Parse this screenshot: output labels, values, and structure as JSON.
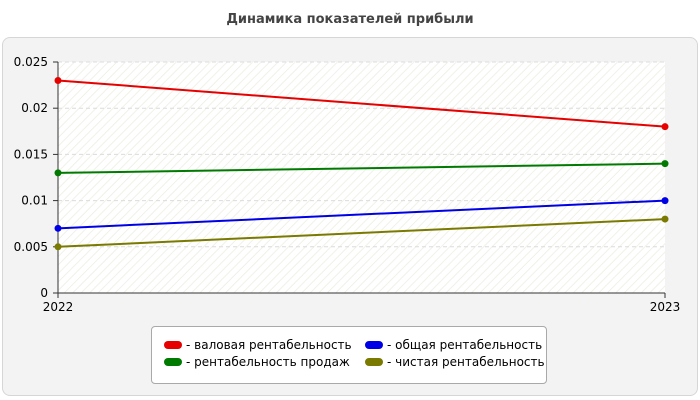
{
  "chart_data": {
    "type": "line",
    "title": "Динамика показателей прибыли",
    "x": [
      "2022",
      "2023"
    ],
    "ylim": [
      0,
      0.025
    ],
    "y_ticks": [
      "0",
      "0.005",
      "0.01",
      "0.015",
      "0.02",
      "0.025"
    ],
    "grid": true,
    "legend_position": "bottom",
    "series": [
      {
        "name": "- валовая рентабельность",
        "color": "#e60000",
        "values": [
          0.023,
          0.018
        ]
      },
      {
        "name": "- общая рентабельность",
        "color": "#0000e6",
        "values": [
          0.007,
          0.01
        ]
      },
      {
        "name": "- рентабельность продаж",
        "color": "#007a00",
        "values": [
          0.013,
          0.014
        ]
      },
      {
        "name": "- чистая рентабельность",
        "color": "#7a7a00",
        "values": [
          0.005,
          0.008
        ]
      }
    ]
  }
}
